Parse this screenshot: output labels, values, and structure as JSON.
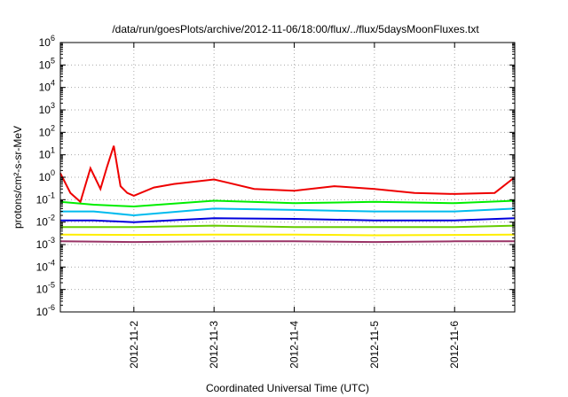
{
  "chart_data": {
    "type": "line",
    "title": "/data/run/goesPlots/archive/2012-11-06/18:00/flux/../flux/5daysMoonFluxes.txt",
    "xlabel": "Coordinated Universal Time (UTC)",
    "ylabel": "protons/cm²-s-sr-MeV",
    "y_scale": "log",
    "ylim": [
      1e-06,
      1000000.0
    ],
    "y_ticks": [
      {
        "value": 1e-06,
        "base": "10",
        "exp": "-6"
      },
      {
        "value": 1e-05,
        "base": "10",
        "exp": "-5"
      },
      {
        "value": 0.0001,
        "base": "10",
        "exp": "-4"
      },
      {
        "value": 0.001,
        "base": "10",
        "exp": "-3"
      },
      {
        "value": 0.01,
        "base": "10",
        "exp": "-2"
      },
      {
        "value": 0.1,
        "base": "10",
        "exp": "-1"
      },
      {
        "value": 1,
        "base": "10",
        "exp": "0"
      },
      {
        "value": 10,
        "base": "10",
        "exp": "1"
      },
      {
        "value": 100,
        "base": "10",
        "exp": "2"
      },
      {
        "value": 1000,
        "base": "10",
        "exp": "3"
      },
      {
        "value": 10000,
        "base": "10",
        "exp": "4"
      },
      {
        "value": 100000,
        "base": "10",
        "exp": "5"
      },
      {
        "value": 1000000,
        "base": "10",
        "exp": "6"
      }
    ],
    "xlim": [
      "2012-11-01 02:00",
      "2012-11-06 18:00"
    ],
    "x_ticks": [
      "2012-11-2",
      "2012-11-3",
      "2012-11-4",
      "2012-11-5",
      "2012-11-6"
    ],
    "grid": true,
    "series": [
      {
        "color": "#ee0000",
        "x": [
          "2012-11-01 02:00",
          "2012-11-01 05:00",
          "2012-11-01 08:00",
          "2012-11-01 11:00",
          "2012-11-01 14:00",
          "2012-11-01 16:00",
          "2012-11-01 18:00",
          "2012-11-01 20:00",
          "2012-11-01 22:00",
          "2012-11-02 00:00",
          "2012-11-02 06:00",
          "2012-11-02 12:00",
          "2012-11-03 00:00",
          "2012-11-03 12:00",
          "2012-11-04 00:00",
          "2012-11-04 12:00",
          "2012-11-05 00:00",
          "2012-11-05 12:00",
          "2012-11-06 00:00",
          "2012-11-06 12:00",
          "2012-11-06 18:00"
        ],
        "values": [
          1.5,
          0.2,
          0.08,
          2.5,
          0.3,
          3,
          25,
          0.4,
          0.2,
          0.15,
          0.35,
          0.5,
          0.8,
          0.3,
          0.25,
          0.4,
          0.3,
          0.2,
          0.18,
          0.2,
          1.0
        ]
      },
      {
        "color": "#00ee00",
        "x": [
          "2012-11-01 02:00",
          "2012-11-01 12:00",
          "2012-11-02 00:00",
          "2012-11-03 00:00",
          "2012-11-04 00:00",
          "2012-11-05 00:00",
          "2012-11-06 00:00",
          "2012-11-06 18:00"
        ],
        "values": [
          0.08,
          0.06,
          0.05,
          0.09,
          0.07,
          0.08,
          0.07,
          0.09
        ]
      },
      {
        "color": "#00bbee",
        "x": [
          "2012-11-01 02:00",
          "2012-11-01 12:00",
          "2012-11-02 00:00",
          "2012-11-03 00:00",
          "2012-11-04 00:00",
          "2012-11-05 00:00",
          "2012-11-06 00:00",
          "2012-11-06 18:00"
        ],
        "values": [
          0.03,
          0.03,
          0.02,
          0.04,
          0.035,
          0.03,
          0.03,
          0.04
        ]
      },
      {
        "color": "#0000dd",
        "x": [
          "2012-11-01 02:00",
          "2012-11-01 12:00",
          "2012-11-02 00:00",
          "2012-11-03 00:00",
          "2012-11-04 00:00",
          "2012-11-05 00:00",
          "2012-11-06 00:00",
          "2012-11-06 18:00"
        ],
        "values": [
          0.012,
          0.012,
          0.01,
          0.015,
          0.014,
          0.012,
          0.012,
          0.015
        ]
      },
      {
        "color": "#66cc00",
        "x": [
          "2012-11-01 02:00",
          "2012-11-02 00:00",
          "2012-11-03 00:00",
          "2012-11-04 00:00",
          "2012-11-05 00:00",
          "2012-11-06 00:00",
          "2012-11-06 18:00"
        ],
        "values": [
          0.006,
          0.006,
          0.007,
          0.006,
          0.006,
          0.006,
          0.007
        ]
      },
      {
        "color": "#ffee00",
        "x": [
          "2012-11-01 02:00",
          "2012-11-02 00:00",
          "2012-11-03 00:00",
          "2012-11-04 00:00",
          "2012-11-05 00:00",
          "2012-11-06 00:00",
          "2012-11-06 18:00"
        ],
        "values": [
          0.0028,
          0.0027,
          0.0028,
          0.0028,
          0.0026,
          0.0027,
          0.0028
        ]
      },
      {
        "color": "#993366",
        "x": [
          "2012-11-01 02:00",
          "2012-11-02 00:00",
          "2012-11-03 00:00",
          "2012-11-04 00:00",
          "2012-11-05 00:00",
          "2012-11-06 00:00",
          "2012-11-06 18:00"
        ],
        "values": [
          0.0014,
          0.0013,
          0.0014,
          0.0014,
          0.0013,
          0.0014,
          0.0014
        ]
      }
    ]
  }
}
